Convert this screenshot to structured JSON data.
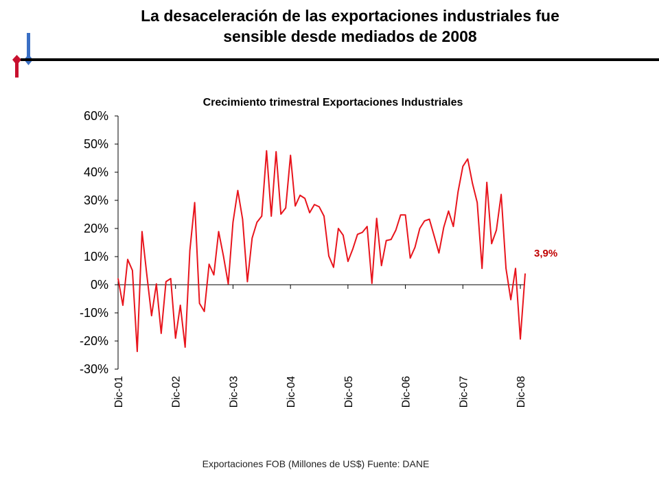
{
  "slide": {
    "title_line1": "La desaceleración de las exportaciones industriales fue",
    "title_line2": "sensible desde mediados de 2008",
    "footer": "Exportaciones FOB (Millones de US$)   Fuente: DANE"
  },
  "colors": {
    "series": "#e8141c",
    "last_label": "#c00000",
    "logo_red": "#c8102e",
    "logo_blue": "#3a6fc4",
    "rule": "#000000"
  },
  "chart_data": {
    "type": "line",
    "title": "Crecimiento trimestral Exportaciones Industriales",
    "xlabel": "",
    "ylabel": "",
    "ylim": [
      -30,
      60
    ],
    "yticks": [
      60,
      50,
      40,
      30,
      20,
      10,
      0,
      -10,
      -20,
      -30
    ],
    "ytick_labels": [
      "60%",
      "50%",
      "40%",
      "30%",
      "20%",
      "10%",
      "0%",
      "-10%",
      "-20%",
      "-30%"
    ],
    "xtick_labels": [
      "Dic-01",
      "Dic-02",
      "Dic-03",
      "Dic-04",
      "Dic-05",
      "Dic-06",
      "Dic-07",
      "Dic-08"
    ],
    "last_value_label": "3,9%",
    "grid": false,
    "legend": "none",
    "series": [
      {
        "values": [
          2.2,
          -7.3,
          9.0,
          5.1,
          -23.7,
          18.9,
          3.5,
          -11.0,
          0.3,
          -17.3,
          1.1,
          2.2,
          -19.0,
          -7.3,
          -22.2,
          12.2,
          29.2,
          -6.6,
          -9.5,
          7.3,
          3.5,
          18.9,
          10.2,
          0.3,
          22.2,
          33.5,
          23.3,
          1.1,
          16.6,
          22.2,
          24.4,
          47.6,
          24.4,
          47.3,
          25.1,
          27.3,
          46.0,
          28.0,
          31.8,
          30.7,
          25.6,
          28.5,
          27.7,
          24.4,
          10.2,
          6.2,
          20.0,
          17.6,
          8.3,
          12.6,
          17.9,
          18.6,
          20.7,
          0.5,
          23.6,
          6.8,
          15.7,
          16.1,
          19.4,
          24.8,
          24.8,
          9.5,
          13.3,
          20.0,
          22.7,
          23.3,
          17.4,
          11.3,
          20.4,
          26.2,
          20.7,
          33.1,
          42.1,
          44.7,
          36.0,
          29.2,
          5.8,
          36.4,
          14.6,
          19.4,
          32.1,
          5.8,
          -5.3,
          5.8,
          -19.3,
          3.9
        ]
      }
    ]
  }
}
